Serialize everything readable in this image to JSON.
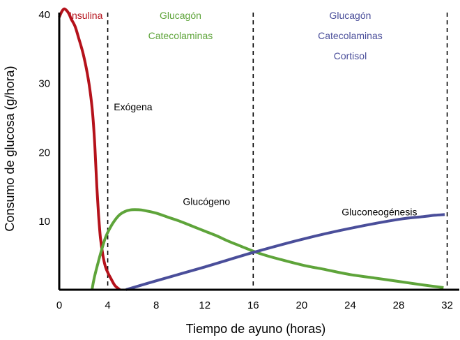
{
  "chart_data": {
    "type": "line",
    "xlabel": "Tiempo de ayuno (horas)",
    "ylabel": "Consumo de glucosa (g/hora)",
    "xlim": [
      0,
      33
    ],
    "ylim": [
      0,
      42
    ],
    "x_ticks": [
      0,
      4,
      8,
      12,
      16,
      20,
      24,
      28,
      32
    ],
    "y_ticks": [
      10,
      20,
      30,
      40
    ],
    "grid": false,
    "phase_boundaries": [
      4,
      16,
      32
    ],
    "series": [
      {
        "name": "Exógena",
        "color": "#b5121b",
        "x": [
          0,
          0.2,
          0.4,
          0.6,
          0.8,
          1.0,
          1.3,
          1.6,
          2.0,
          2.4,
          2.7,
          2.9,
          3.0,
          3.1,
          3.2,
          3.3,
          3.4,
          3.6,
          3.8,
          4.0,
          4.3,
          4.6,
          5.0
        ],
        "y": [
          39.5,
          40.3,
          40.7,
          40.5,
          40.0,
          39.2,
          38.2,
          36.5,
          34.0,
          30.5,
          26.5,
          22.0,
          18.5,
          15.0,
          12.0,
          9.5,
          7.5,
          5.0,
          3.4,
          2.5,
          1.5,
          0.6,
          0.0
        ]
      },
      {
        "name": "Glucógeno",
        "color": "#5ea43a",
        "x": [
          2.7,
          2.9,
          3.2,
          3.5,
          3.8,
          4.2,
          4.6,
          5.0,
          5.5,
          6.0,
          6.5,
          7.0,
          8.0,
          9.0,
          10.0,
          11.0,
          12.0,
          13.0,
          14.0,
          15.0,
          16.0,
          17.0,
          18.0,
          20.0,
          22.0,
          24.0,
          26.0,
          28.0,
          30.0,
          31.7
        ],
        "y": [
          0.0,
          1.8,
          3.9,
          5.8,
          7.5,
          9.0,
          10.1,
          10.9,
          11.4,
          11.6,
          11.6,
          11.5,
          11.1,
          10.5,
          9.9,
          9.2,
          8.5,
          7.8,
          7.0,
          6.3,
          5.6,
          5.0,
          4.5,
          3.6,
          2.9,
          2.2,
          1.7,
          1.2,
          0.7,
          0.3
        ]
      },
      {
        "name": "Gluconeogénesis",
        "color": "#4a4e9a",
        "x": [
          5.5,
          8,
          12,
          16,
          20,
          24,
          28,
          30,
          31,
          31.8
        ],
        "y": [
          0.0,
          1.3,
          3.3,
          5.4,
          7.3,
          8.9,
          10.2,
          10.6,
          10.8,
          10.9
        ]
      }
    ],
    "series_labels": [
      {
        "text": "Exógena",
        "color": "#000000",
        "x": 4.5,
        "y": 26.5
      },
      {
        "text": "Glucógeno",
        "color": "#000000",
        "x": 10.2,
        "y": 12.8
      },
      {
        "text": "Gluconeogénesis",
        "color": "#000000",
        "x": 23.3,
        "y": 11.3
      }
    ],
    "phase_labels": [
      {
        "lines": [
          "Insulina"
        ],
        "color": "#b5121b",
        "x": 2.2
      },
      {
        "lines": [
          "Glucagón",
          "Catecolaminas"
        ],
        "color": "#5ea43a",
        "x": 10.0
      },
      {
        "lines": [
          "Glucagón",
          "Catecolaminas",
          "Cortisol"
        ],
        "color": "#4a4e9a",
        "x": 24.0
      }
    ]
  }
}
